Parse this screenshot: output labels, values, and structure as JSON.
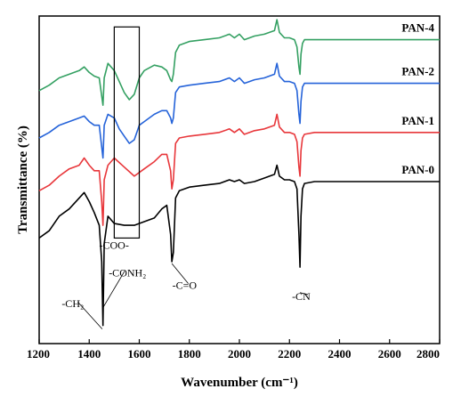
{
  "chart_data": {
    "type": "line",
    "xlabel": "Wavenumber (cm⁻¹)",
    "ylabel": "Transmittance (%)",
    "xlim": [
      1200,
      2800
    ],
    "x_ticks": [
      "1200",
      "1400",
      "1600",
      "1800",
      "2000",
      "2200",
      "2400",
      "2600",
      "2800"
    ],
    "grid": false,
    "series": [
      {
        "name": "PAN-0",
        "color": "#000000",
        "x": [
          1200,
          1240,
          1280,
          1320,
          1360,
          1380,
          1400,
          1420,
          1440,
          1450,
          1455,
          1460,
          1475,
          1500,
          1540,
          1580,
          1620,
          1660,
          1690,
          1710,
          1725,
          1730,
          1736,
          1745,
          1760,
          1800,
          1860,
          1920,
          1960,
          1980,
          2000,
          2020,
          2060,
          2100,
          2140,
          2150,
          2160,
          2180,
          2200,
          2220,
          2230,
          2238,
          2242,
          2246,
          2252,
          2260,
          2300,
          2400,
          2500,
          2600,
          2700,
          2800
        ],
        "y": [
          18,
          22,
          30,
          34,
          40,
          43,
          38,
          32,
          25,
          5,
          -30,
          15,
          30,
          26,
          25,
          25,
          27,
          29,
          34,
          36,
          20,
          5,
          10,
          40,
          44,
          46,
          47,
          48,
          50,
          49,
          50,
          48,
          49,
          51,
          53,
          58,
          52,
          50,
          50,
          49,
          45,
          20,
          2,
          30,
          45,
          48,
          49,
          49,
          49,
          49,
          49,
          49
        ]
      },
      {
        "name": "PAN-1",
        "color": "#e8373b",
        "x": [
          1200,
          1240,
          1280,
          1320,
          1360,
          1380,
          1400,
          1420,
          1440,
          1450,
          1455,
          1460,
          1475,
          1500,
          1540,
          1580,
          1620,
          1660,
          1690,
          1710,
          1725,
          1730,
          1736,
          1745,
          1760,
          1800,
          1860,
          1920,
          1960,
          1980,
          2000,
          2020,
          2060,
          2100,
          2140,
          2150,
          2160,
          2180,
          2200,
          2220,
          2230,
          2238,
          2242,
          2246,
          2252,
          2260,
          2300,
          2400,
          2500,
          2600,
          2700,
          2800
        ],
        "y": [
          44,
          47,
          52,
          56,
          58,
          62,
          58,
          55,
          55,
          38,
          25,
          50,
          58,
          62,
          57,
          52,
          56,
          60,
          64,
          64,
          55,
          45,
          50,
          70,
          73,
          74,
          75,
          76,
          78,
          76,
          78,
          75,
          77,
          78,
          80,
          86,
          79,
          76,
          76,
          75,
          71,
          57,
          52,
          66,
          73,
          75,
          76,
          76,
          76,
          76,
          76,
          76
        ]
      },
      {
        "name": "PAN-2",
        "color": "#2563d9",
        "x": [
          1200,
          1240,
          1280,
          1320,
          1360,
          1380,
          1400,
          1420,
          1440,
          1450,
          1455,
          1460,
          1475,
          1500,
          1520,
          1540,
          1560,
          1580,
          1600,
          1620,
          1660,
          1690,
          1710,
          1725,
          1730,
          1736,
          1745,
          1760,
          1800,
          1860,
          1920,
          1960,
          1980,
          2000,
          2020,
          2060,
          2100,
          2140,
          2150,
          2160,
          2180,
          2200,
          2220,
          2230,
          2238,
          2242,
          2246,
          2252,
          2260,
          2300,
          2400,
          2500,
          2600,
          2700,
          2800
        ],
        "y": [
          73,
          76,
          80,
          82,
          84,
          85,
          82,
          80,
          80,
          68,
          62,
          80,
          86,
          84,
          78,
          74,
          70,
          72,
          80,
          82,
          86,
          88,
          88,
          84,
          81,
          84,
          98,
          101,
          102,
          103,
          104,
          106,
          104,
          106,
          103,
          105,
          106,
          108,
          114,
          107,
          104,
          104,
          103,
          99,
          86,
          81,
          93,
          101,
          103,
          103,
          103,
          103,
          103,
          103,
          103
        ]
      },
      {
        "name": "PAN-4",
        "color": "#34a062",
        "x": [
          1200,
          1240,
          1280,
          1320,
          1360,
          1380,
          1400,
          1420,
          1440,
          1450,
          1455,
          1460,
          1475,
          1500,
          1520,
          1540,
          1560,
          1580,
          1600,
          1620,
          1660,
          1690,
          1710,
          1725,
          1730,
          1736,
          1745,
          1760,
          1800,
          1860,
          1920,
          1960,
          1980,
          2000,
          2020,
          2060,
          2100,
          2140,
          2150,
          2160,
          2180,
          2200,
          2220,
          2230,
          2238,
          2242,
          2246,
          2252,
          2260,
          2300,
          2400,
          2500,
          2600,
          2700,
          2800
        ],
        "y": [
          99,
          102,
          106,
          108,
          110,
          112,
          109,
          107,
          106,
          96,
          91,
          106,
          114,
          110,
          104,
          98,
          94,
          97,
          106,
          110,
          113,
          112,
          110,
          105,
          104,
          108,
          120,
          124,
          126,
          127,
          128,
          130,
          128,
          130,
          127,
          129,
          130,
          132,
          138,
          131,
          128,
          128,
          127,
          123,
          112,
          108,
          119,
          125,
          127,
          127,
          127,
          127,
          127,
          127,
          127
        ]
      }
    ],
    "annotations": [
      {
        "text": "-CH₂",
        "x": 1290,
        "y": -20
      },
      {
        "text": "-CONH₂",
        "x": 1478,
        "y": -3
      },
      {
        "text": "-COO-",
        "x": 1440,
        "y": 12
      },
      {
        "text": "-C=O",
        "x": 1732,
        "y": -10
      },
      {
        "text": "-CN",
        "x": 2210,
        "y": -16
      }
    ],
    "highlight_box": {
      "x": [
        1500,
        1600
      ],
      "y": [
        18,
        134
      ]
    }
  }
}
